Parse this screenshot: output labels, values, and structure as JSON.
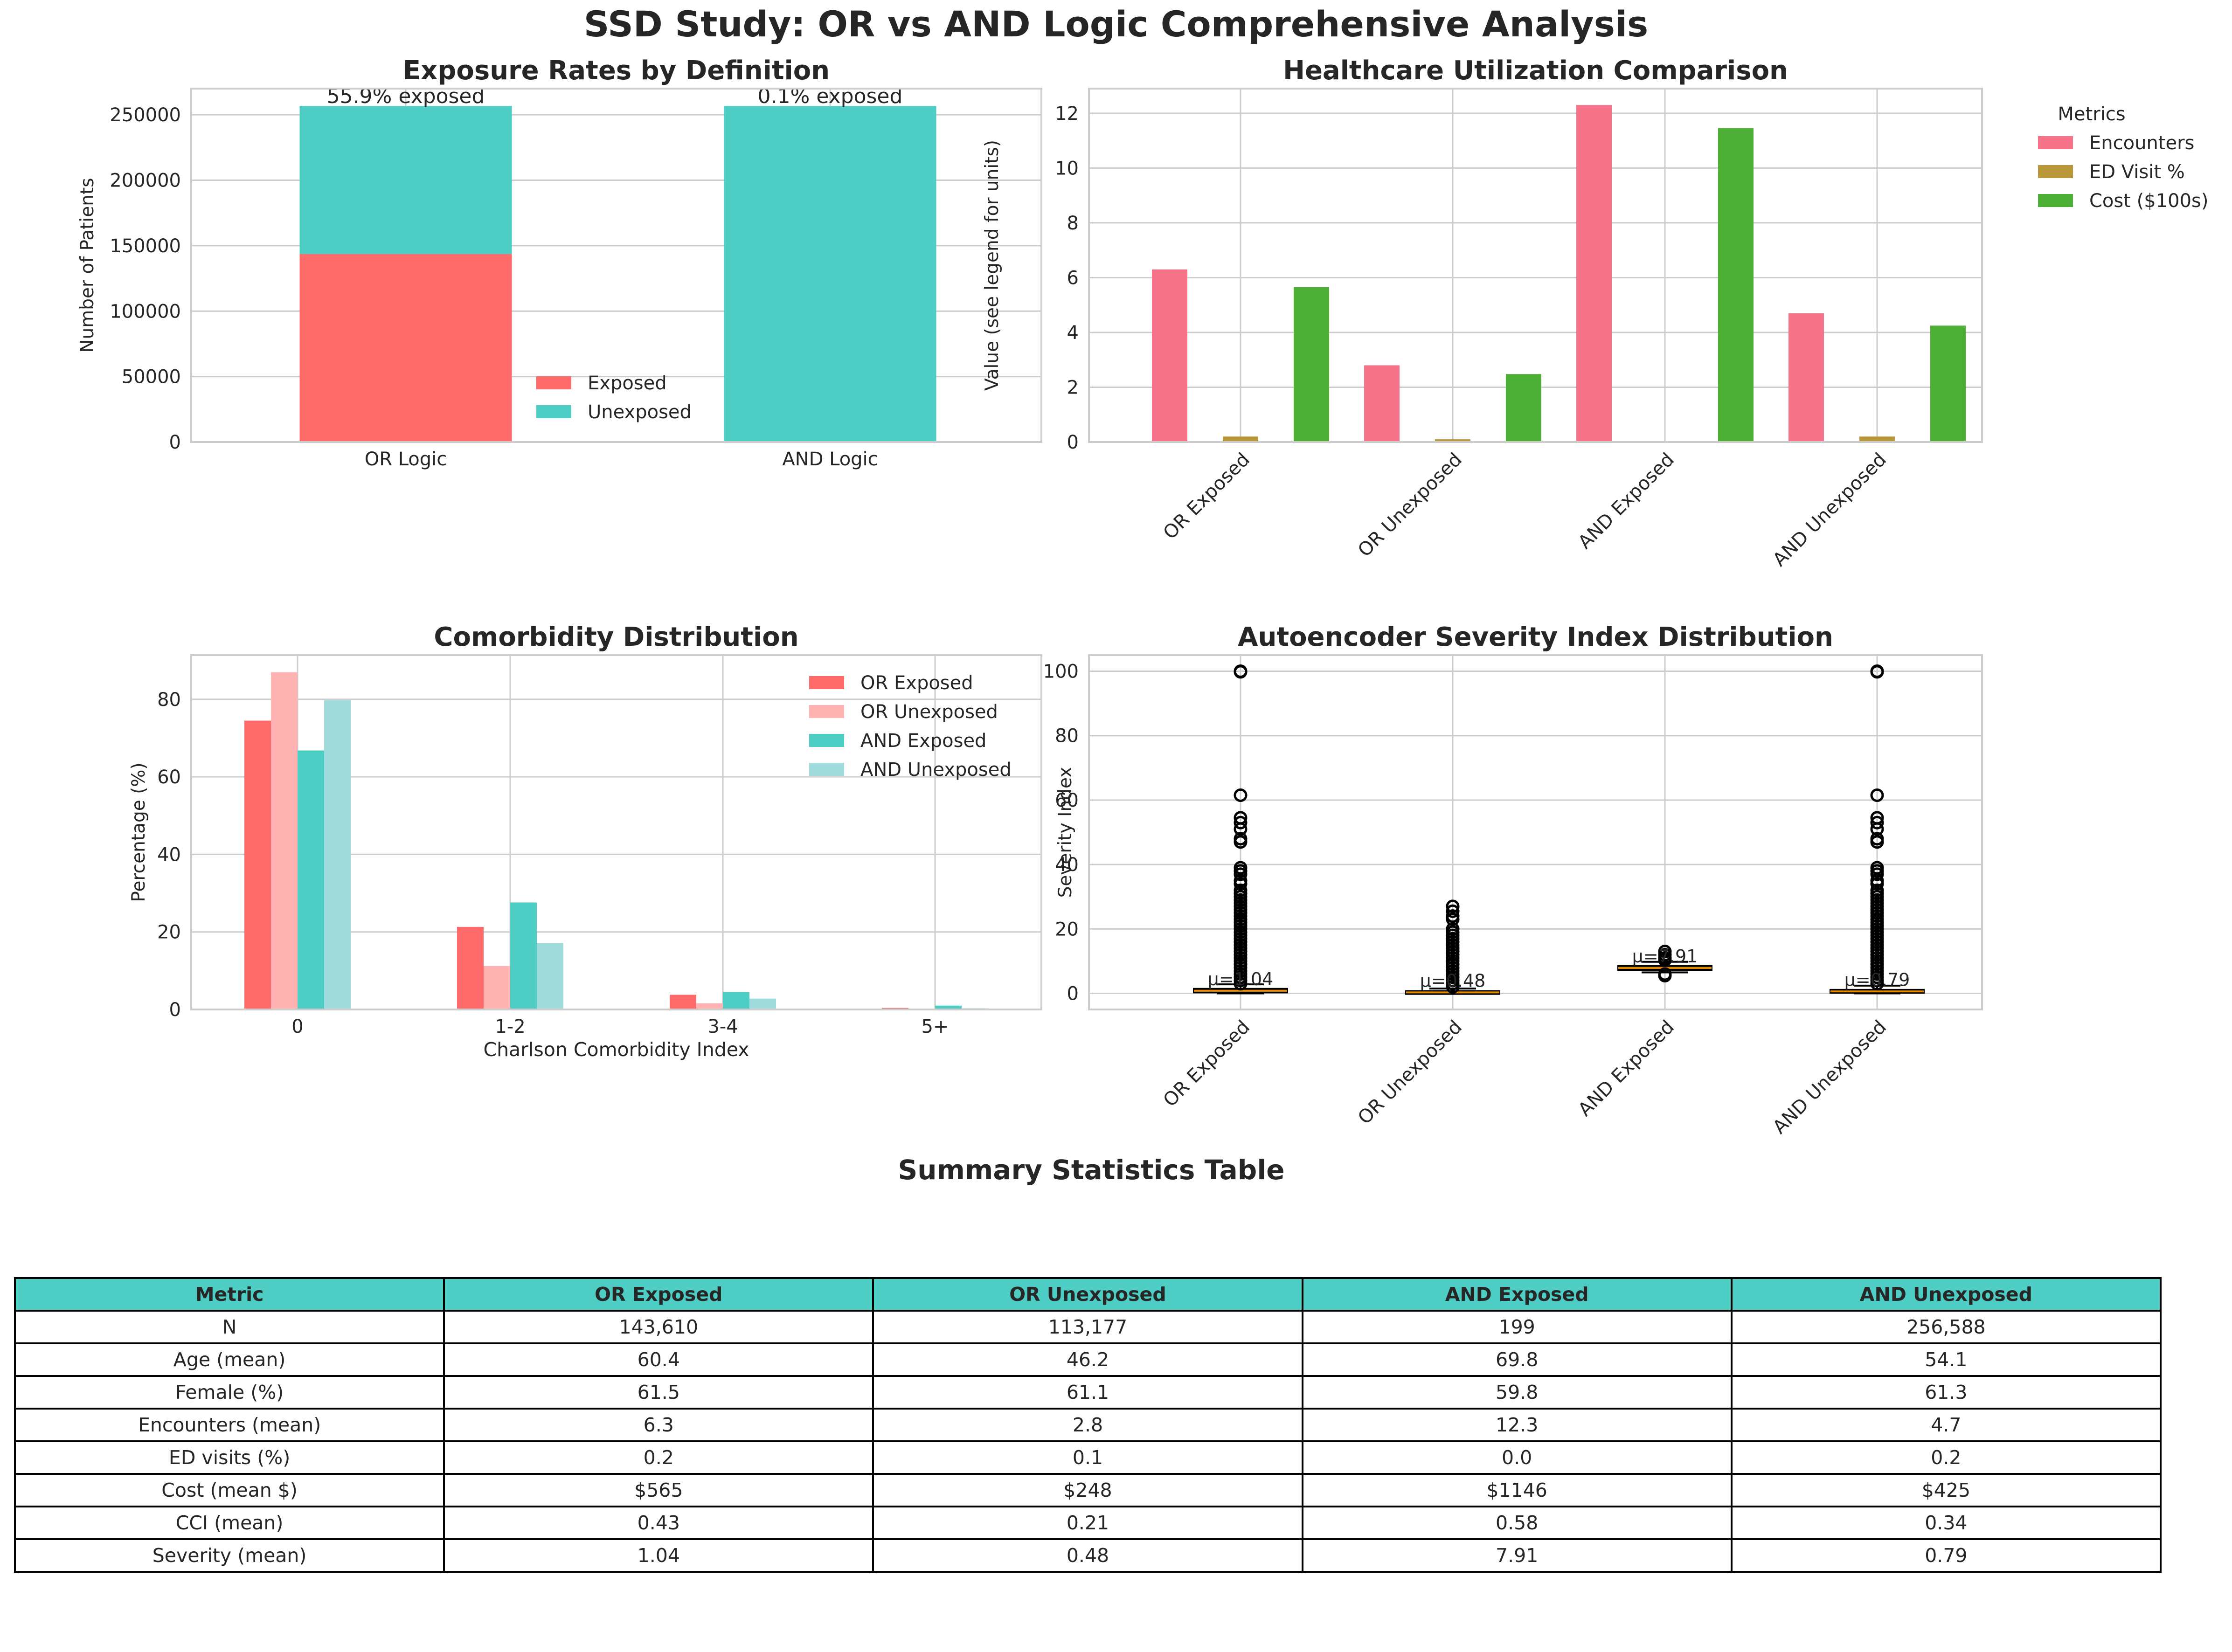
{
  "title": "SSD Study: OR vs AND Logic Comprehensive Analysis",
  "colors": {
    "exposed": "#ff6b6b",
    "unexposed": "#4ecdc4",
    "or_exposed": "#ff6b6b",
    "or_unexposed": "#ffb3b3",
    "and_exposed": "#4ecdc4",
    "and_unexposed": "#a0dcdc",
    "encounters": "#f7738a",
    "ed": "#b89738",
    "cost": "#4daf36",
    "header": "#4ecdc4",
    "box_fill": "#c9a449"
  },
  "chart_data": [
    {
      "type": "bar",
      "stacked": true,
      "title": "Exposure Rates by Definition",
      "xlabel": "",
      "ylabel": "Number of Patients",
      "categories": [
        "OR Logic",
        "AND Logic"
      ],
      "series": [
        {
          "name": "Exposed",
          "values": [
            143610,
            199
          ]
        },
        {
          "name": "Unexposed",
          "values": [
            113177,
            256588
          ]
        }
      ],
      "annotations": [
        "55.9% exposed",
        "0.1% exposed"
      ],
      "ylim": [
        0,
        270000
      ],
      "yticks": [
        0,
        50000,
        100000,
        150000,
        200000,
        250000
      ],
      "legend": "lower-right",
      "grid": true
    },
    {
      "type": "bar",
      "title": "Healthcare Utilization Comparison",
      "xlabel": "",
      "ylabel": "Value (see legend for units)",
      "categories": [
        "OR Exposed",
        "OR Unexposed",
        "AND Exposed",
        "AND Unexposed"
      ],
      "legend_title": "Metrics",
      "series": [
        {
          "name": "Encounters",
          "values": [
            6.3,
            2.8,
            12.3,
            4.7
          ]
        },
        {
          "name": "ED Visit %",
          "values": [
            0.2,
            0.1,
            0.0,
            0.2
          ]
        },
        {
          "name": "Cost ($100s)",
          "values": [
            5.65,
            2.48,
            11.46,
            4.25
          ]
        }
      ],
      "ylim": [
        0,
        12.9
      ],
      "yticks": [
        0,
        2,
        4,
        6,
        8,
        10,
        12
      ],
      "legend": "outside-right",
      "grid": true
    },
    {
      "type": "bar",
      "title": "Comorbidity Distribution",
      "xlabel": "Charlson Comorbidity Index",
      "ylabel": "Percentage (%)",
      "categories": [
        "0",
        "1-2",
        "3-4",
        "5+"
      ],
      "series": [
        {
          "name": "OR Exposed",
          "values": [
            74.5,
            21.3,
            3.8,
            0.4
          ]
        },
        {
          "name": "OR Unexposed",
          "values": [
            87.0,
            11.2,
            1.6,
            0.2
          ]
        },
        {
          "name": "AND Exposed",
          "values": [
            66.8,
            27.6,
            4.5,
            1.0
          ]
        },
        {
          "name": "AND Unexposed",
          "values": [
            79.8,
            17.1,
            2.8,
            0.3
          ]
        }
      ],
      "ylim": [
        0,
        91.4
      ],
      "yticks": [
        0,
        20,
        40,
        60,
        80
      ],
      "legend": "top-right",
      "grid": true
    },
    {
      "type": "box",
      "title": "Autoencoder Severity Index Distribution",
      "xlabel": "",
      "ylabel": "Severity Index",
      "categories": [
        "OR Exposed",
        "OR Unexposed",
        "AND Exposed",
        "AND Unexposed"
      ],
      "mean_labels": [
        "μ=1.04",
        "μ=0.48",
        "μ=7.91",
        "μ=0.79"
      ],
      "boxes": [
        {
          "q1": 0.3,
          "median": 0.8,
          "q3": 1.4,
          "whisker_low": 0.0,
          "whisker_high": 2.8,
          "outliers": [
            3,
            4,
            5,
            6,
            7,
            8,
            9,
            10,
            11,
            12,
            13,
            14,
            15,
            16,
            17,
            18,
            19,
            20,
            21,
            22,
            23,
            24,
            25,
            26,
            27,
            28,
            29,
            30,
            31,
            32,
            34,
            35,
            37,
            38,
            39,
            47,
            48,
            51,
            53,
            54.5,
            61.5,
            99.8,
            100
          ]
        },
        {
          "q1": 0.1,
          "median": 0.3,
          "q3": 0.7,
          "whisker_low": 0.0,
          "whisker_high": 1.5,
          "outliers": [
            2,
            3,
            4,
            5,
            6,
            7,
            8,
            9,
            10,
            11,
            12,
            13,
            14,
            15,
            16,
            17,
            18,
            19,
            20,
            23,
            24,
            25.5,
            27
          ]
        },
        {
          "q1": 7.3,
          "median": 7.9,
          "q3": 8.5,
          "whisker_low": 6.5,
          "whisker_high": 9.8,
          "outliers": [
            5.5,
            6.0,
            10.3,
            11,
            12,
            13
          ]
        },
        {
          "q1": 0.2,
          "median": 0.6,
          "q3": 1.1,
          "whisker_low": 0.0,
          "whisker_high": 2.4,
          "outliers": [
            3,
            4,
            5,
            6,
            7,
            8,
            9,
            10,
            11,
            12,
            13,
            14,
            15,
            16,
            17,
            18,
            19,
            20,
            21,
            22,
            23,
            24,
            25,
            26,
            27,
            28,
            29,
            30,
            31,
            32,
            34,
            35,
            37,
            38,
            39,
            47,
            48,
            51,
            53,
            54.5,
            61.5,
            99.8,
            100
          ]
        }
      ],
      "ylim": [
        -5,
        105
      ],
      "yticks": [
        0,
        20,
        40,
        60,
        80,
        100
      ],
      "grid": true
    },
    {
      "type": "table",
      "title": "Summary Statistics Table",
      "columns": [
        "Metric",
        "OR Exposed",
        "OR Unexposed",
        "AND Exposed",
        "AND Unexposed"
      ],
      "rows": [
        [
          "N",
          "143,610",
          "113,177",
          "199",
          "256,588"
        ],
        [
          "Age (mean)",
          "60.4",
          "46.2",
          "69.8",
          "54.1"
        ],
        [
          "Female (%)",
          "61.5",
          "61.1",
          "59.8",
          "61.3"
        ],
        [
          "Encounters (mean)",
          "6.3",
          "2.8",
          "12.3",
          "4.7"
        ],
        [
          "ED visits (%)",
          "0.2",
          "0.1",
          "0.0",
          "0.2"
        ],
        [
          "Cost (mean $)",
          "$565",
          "$248",
          "$1146",
          "$425"
        ],
        [
          "CCI (mean)",
          "0.43",
          "0.21",
          "0.58",
          "0.34"
        ],
        [
          "Severity (mean)",
          "1.04",
          "0.48",
          "7.91",
          "0.79"
        ]
      ]
    }
  ]
}
